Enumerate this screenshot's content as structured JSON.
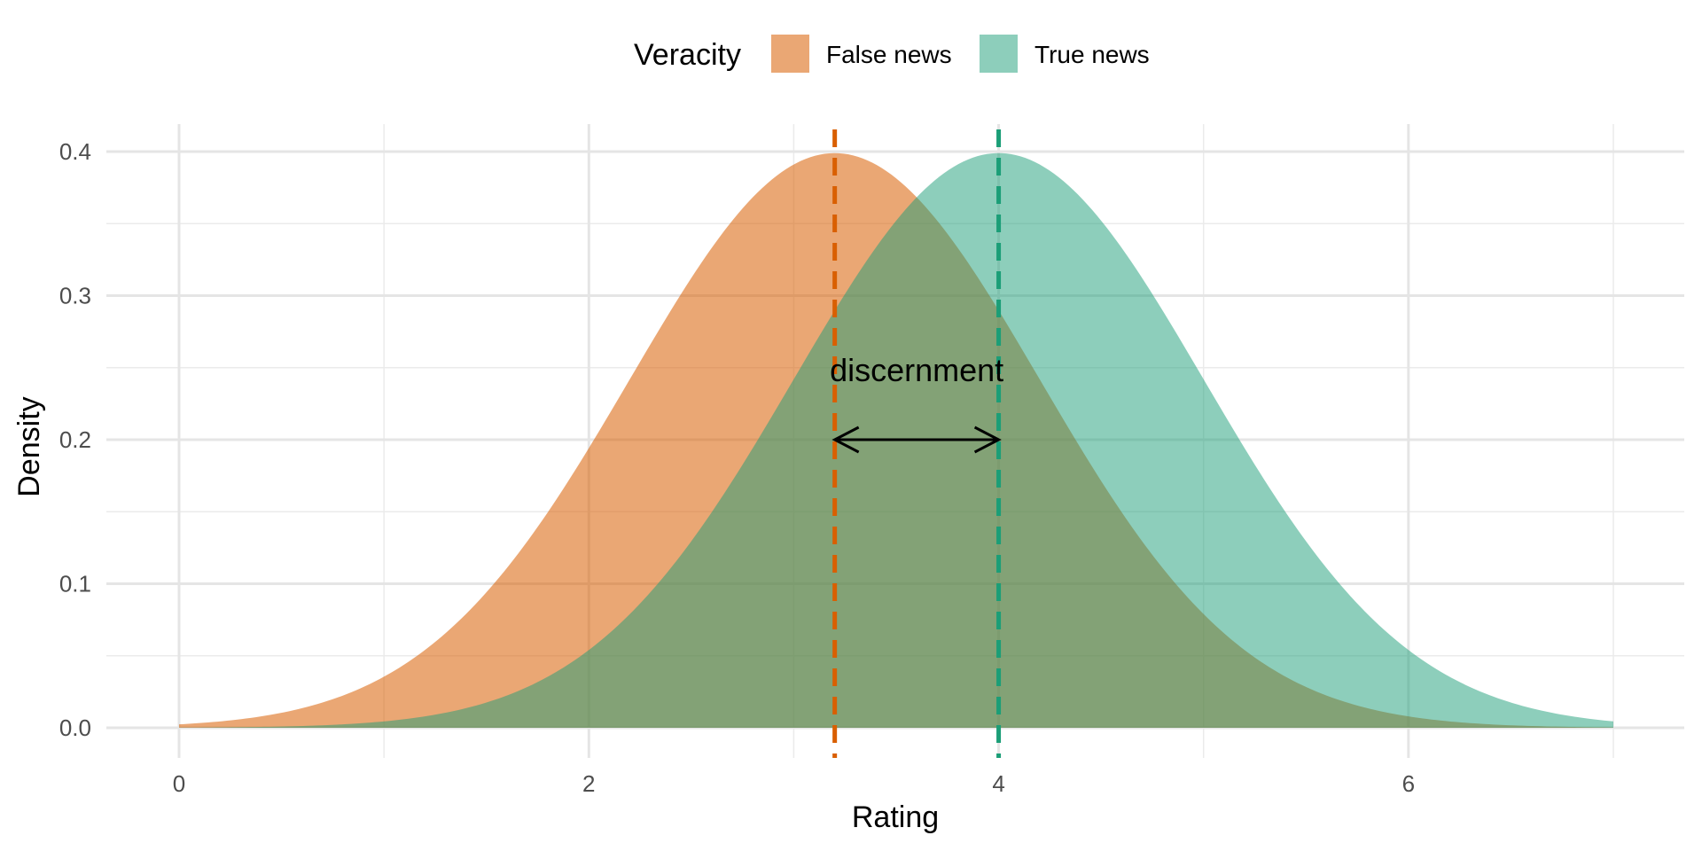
{
  "chart_data": {
    "type": "area",
    "title": "",
    "xlabel": "Rating",
    "ylabel": "Density",
    "xlim": [
      0,
      7
    ],
    "ylim": [
      0,
      0.4
    ],
    "x_ticks": [
      0,
      2,
      4,
      6
    ],
    "y_ticks": [
      0.0,
      0.1,
      0.2,
      0.3,
      0.4
    ],
    "x_tick_labels": [
      "0",
      "2",
      "4",
      "6"
    ],
    "y_tick_labels": [
      "0.0",
      "0.1",
      "0.2",
      "0.3",
      "0.4"
    ],
    "grid": true,
    "legend": {
      "title": "Veracity",
      "position": "top",
      "entries": [
        "False news",
        "True news"
      ]
    },
    "series": [
      {
        "name": "False news",
        "distribution": "normal",
        "mean": 3.2,
        "sd": 1,
        "x_range": [
          0,
          7
        ],
        "color": "#d95f02",
        "fill_opacity": 0.55
      },
      {
        "name": "True news",
        "distribution": "normal",
        "mean": 4.0,
        "sd": 1,
        "x_range": [
          0,
          7
        ],
        "color": "#1b9e77",
        "fill_opacity": 0.5
      }
    ],
    "vlines": [
      {
        "x": 3.2,
        "color": "#d95f02",
        "style": "dashed"
      },
      {
        "x": 4.0,
        "color": "#1b9e77",
        "style": "dashed"
      }
    ],
    "annotations": [
      {
        "type": "double-arrow",
        "x_from": 3.2,
        "x_to": 4.0,
        "y": 0.2
      },
      {
        "type": "text",
        "text": "discernment",
        "x": 3.6,
        "y": 0.248
      }
    ]
  }
}
